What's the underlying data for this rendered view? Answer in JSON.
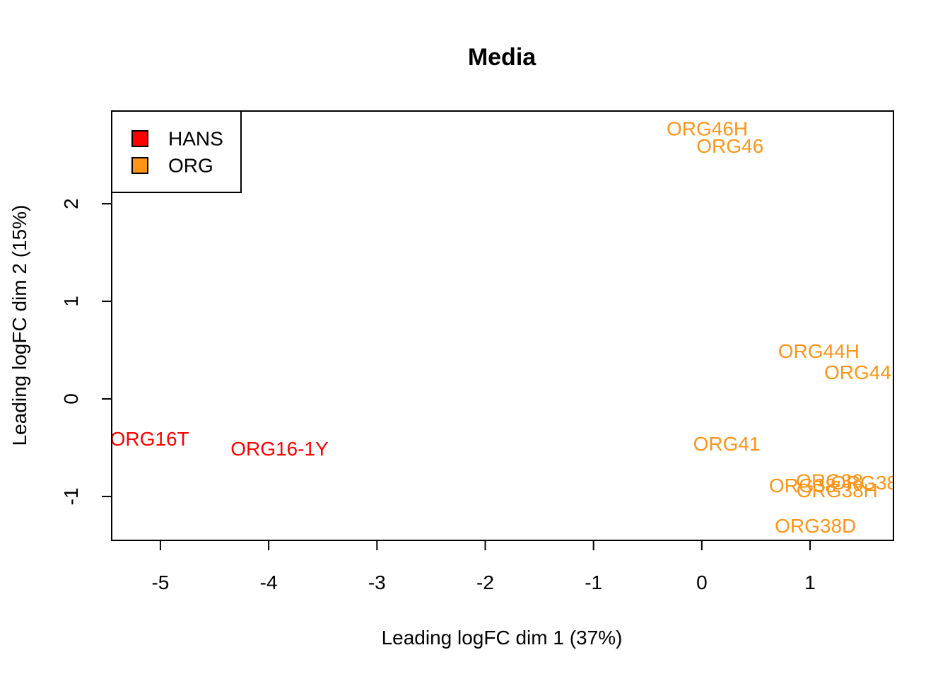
{
  "chart_data": {
    "type": "scatter",
    "title": "Media",
    "xlabel": "Leading logFC dim 1 (37%)",
    "ylabel": "Leading logFC dim 2 (15%)",
    "xlim": [
      -5.45,
      1.77
    ],
    "ylim": [
      -1.45,
      2.95
    ],
    "xticks": [
      -5,
      -4,
      -3,
      -2,
      -1,
      0,
      1
    ],
    "yticks": [
      -1,
      0,
      1,
      2
    ],
    "grid": false,
    "legend_position": "top-left",
    "legend": [
      {
        "label": "HANS",
        "color": "#FF0000"
      },
      {
        "label": "ORG",
        "color": "#FF9416"
      }
    ],
    "points": [
      {
        "label": "ORG16T",
        "x": -5.1,
        "y": -0.41,
        "group": "HANS"
      },
      {
        "label": "ORG16-1Y",
        "x": -3.9,
        "y": -0.51,
        "group": "HANS"
      },
      {
        "label": "ORG46H",
        "x": 0.05,
        "y": 2.77,
        "group": "ORG"
      },
      {
        "label": "ORG46",
        "x": 0.26,
        "y": 2.59,
        "group": "ORG"
      },
      {
        "label": "ORG44H",
        "x": 1.08,
        "y": 0.49,
        "group": "ORG"
      },
      {
        "label": "ORG44",
        "x": 1.44,
        "y": 0.27,
        "group": "ORG"
      },
      {
        "label": "ORG41",
        "x": 0.23,
        "y": -0.46,
        "group": "ORG"
      },
      {
        "label": "ORG38",
        "x": 1.18,
        "y": -0.84,
        "group": "ORG"
      },
      {
        "label": "ORG38",
        "x": 1.5,
        "y": -0.86,
        "group": "ORG"
      },
      {
        "label": "ORG38",
        "x": 0.93,
        "y": -0.89,
        "group": "ORG"
      },
      {
        "label": "ORG38H",
        "x": 1.25,
        "y": -0.94,
        "group": "ORG"
      },
      {
        "label": "ORG38D",
        "x": 1.05,
        "y": -1.3,
        "group": "ORG"
      }
    ]
  }
}
